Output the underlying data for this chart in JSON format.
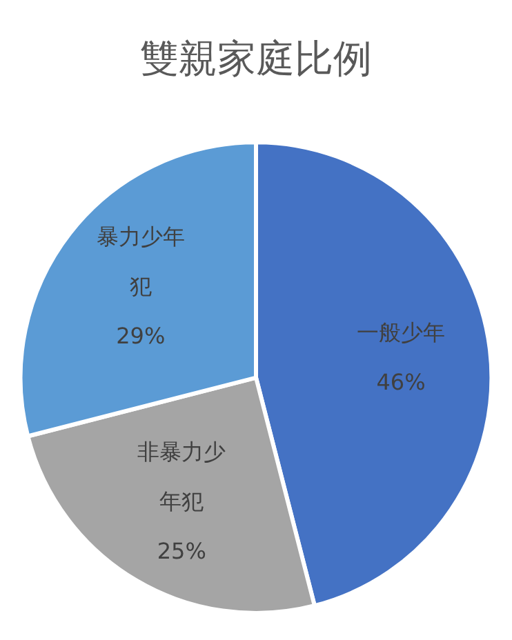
{
  "chart_data": {
    "type": "pie",
    "title": "雙親家庭比例",
    "categories": [
      "一般少年",
      "非暴力少年犯",
      "暴力少年犯"
    ],
    "values": [
      46,
      25,
      29
    ],
    "value_labels": [
      "46%",
      "25%",
      "29%"
    ],
    "colors": [
      "#4472c4",
      "#a5a5a5",
      "#5b9bd5"
    ],
    "legend": false
  }
}
